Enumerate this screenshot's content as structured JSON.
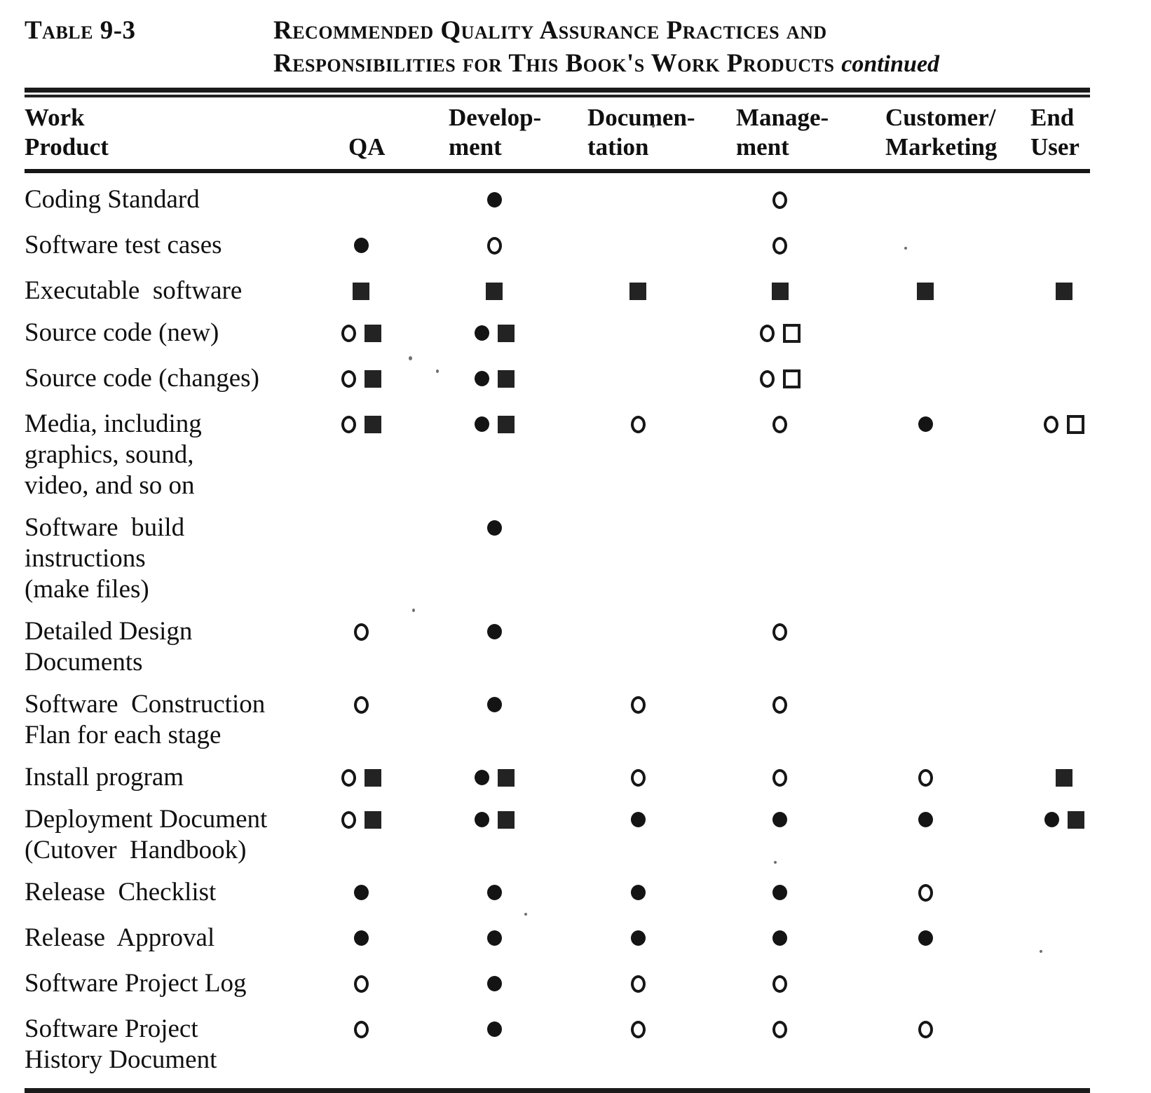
{
  "title": {
    "table_label": "Table 9-3",
    "line1": "Recommended Quality Assurance Practices and",
    "line2": "Responsibilities for This Book's Work Products",
    "continued": "continued"
  },
  "columns": [
    {
      "line1": "Work",
      "line2": "Product"
    },
    {
      "line1": "",
      "line2": "QA"
    },
    {
      "line1": "Develop-",
      "line2": "ment"
    },
    {
      "line1": "Documen-",
      "line2": "tation"
    },
    {
      "line1": "Manage-",
      "line2": "ment"
    },
    {
      "line1": "Customer/",
      "line2": "Marketing"
    },
    {
      "line1": "End",
      "line2": "User"
    }
  ],
  "symbols": {
    "filled-circle": "●",
    "open-circle": "○",
    "filled-square": "■",
    "open-square": "□"
  },
  "rows": [
    {
      "product_lines": [
        "Coding Standard"
      ],
      "cells": [
        [],
        [
          "filled-circle"
        ],
        [],
        [
          "open-circle"
        ],
        [],
        []
      ]
    },
    {
      "product_lines": [
        "Software test cases"
      ],
      "cells": [
        [
          "filled-circle"
        ],
        [
          "open-circle"
        ],
        [],
        [
          "open-circle"
        ],
        [],
        []
      ]
    },
    {
      "product_lines": [
        "Executable  software"
      ],
      "cells": [
        [
          "filled-square"
        ],
        [
          "filled-square"
        ],
        [
          "filled-square"
        ],
        [
          "filled-square"
        ],
        [
          "filled-square"
        ],
        [
          "filled-square"
        ]
      ]
    },
    {
      "product_lines": [
        "Source code (new)"
      ],
      "cells": [
        [
          "open-circle",
          "filled-square"
        ],
        [
          "filled-circle",
          "filled-square"
        ],
        [],
        [
          "open-circle",
          "open-square"
        ],
        [],
        []
      ]
    },
    {
      "product_lines": [
        "Source code (changes)"
      ],
      "cells": [
        [
          "open-circle",
          "filled-square"
        ],
        [
          "filled-circle",
          "filled-square"
        ],
        [],
        [
          "open-circle",
          "open-square"
        ],
        [],
        []
      ]
    },
    {
      "product_lines": [
        "Media, including",
        "graphics, sound,",
        "video, and so on"
      ],
      "cells": [
        [
          "open-circle",
          "filled-square"
        ],
        [
          "filled-circle",
          "filled-square"
        ],
        [
          "open-circle"
        ],
        [
          "open-circle"
        ],
        [
          "filled-circle"
        ],
        [
          "open-circle",
          "open-square"
        ]
      ]
    },
    {
      "product_lines": [
        "Software  build",
        "instructions",
        "(make files)"
      ],
      "cells": [
        [],
        [
          "filled-circle"
        ],
        [],
        [],
        [],
        []
      ]
    },
    {
      "product_lines": [
        "Detailed Design",
        "Documents"
      ],
      "cells": [
        [
          "open-circle"
        ],
        [
          "filled-circle"
        ],
        [],
        [
          "open-circle"
        ],
        [],
        []
      ]
    },
    {
      "product_lines": [
        "Software  Construction",
        "Flan for each stage"
      ],
      "cells": [
        [
          "open-circle"
        ],
        [
          "filled-circle"
        ],
        [
          "open-circle"
        ],
        [
          "open-circle"
        ],
        [],
        []
      ]
    },
    {
      "product_lines": [
        "Install program"
      ],
      "cells": [
        [
          "open-circle",
          "filled-square"
        ],
        [
          "filled-circle",
          "filled-square"
        ],
        [
          "open-circle"
        ],
        [
          "open-circle"
        ],
        [
          "open-circle"
        ],
        [
          "filled-square"
        ]
      ]
    },
    {
      "product_lines": [
        "Deployment Document",
        "(Cutover  Handbook)"
      ],
      "cells": [
        [
          "open-circle",
          "filled-square"
        ],
        [
          "filled-circle",
          "filled-square"
        ],
        [
          "filled-circle"
        ],
        [
          "filled-circle"
        ],
        [
          "filled-circle"
        ],
        [
          "filled-circle",
          "filled-square"
        ]
      ]
    },
    {
      "product_lines": [
        "Release  Checklist"
      ],
      "cells": [
        [
          "filled-circle"
        ],
        [
          "filled-circle"
        ],
        [
          "filled-circle"
        ],
        [
          "filled-circle"
        ],
        [
          "open-circle"
        ],
        []
      ]
    },
    {
      "product_lines": [
        "Release  Approval"
      ],
      "cells": [
        [
          "filled-circle"
        ],
        [
          "filled-circle"
        ],
        [
          "filled-circle"
        ],
        [
          "filled-circle"
        ],
        [
          "filled-circle"
        ],
        []
      ]
    },
    {
      "product_lines": [
        "Software Project Log"
      ],
      "cells": [
        [
          "open-circle"
        ],
        [
          "filled-circle"
        ],
        [
          "open-circle"
        ],
        [
          "open-circle"
        ],
        [],
        []
      ]
    },
    {
      "product_lines": [
        "Software Project",
        "History Document"
      ],
      "cells": [
        [
          "open-circle"
        ],
        [
          "filled-circle"
        ],
        [
          "open-circle"
        ],
        [
          "open-circle"
        ],
        [
          "open-circle"
        ],
        []
      ]
    }
  ]
}
